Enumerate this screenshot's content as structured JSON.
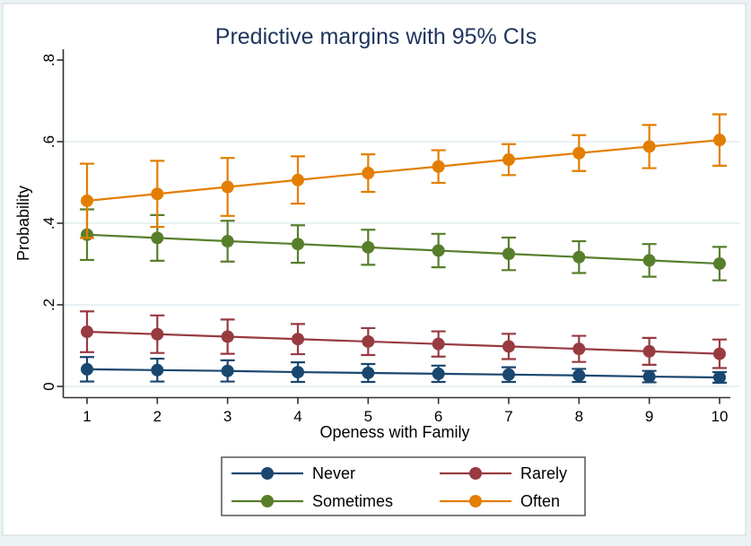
{
  "window": {
    "background": "#eaf2f3",
    "canvas_background": "#ffffff",
    "canvas_border": "#cfd9dd"
  },
  "chart_data": {
    "type": "line",
    "title": "Predictive margins with 95% CIs",
    "title_color": "#1e355e",
    "xlabel": "Openess with Family",
    "ylabel": "Probability",
    "error_bars": "95% CI",
    "x": [
      1,
      2,
      3,
      4,
      5,
      6,
      7,
      8,
      9,
      10
    ],
    "x_tick_labels": [
      "1",
      "2",
      "3",
      "4",
      "5",
      "6",
      "7",
      "8",
      "9",
      "10"
    ],
    "ylim": [
      0,
      0.8
    ],
    "y_ticks": [
      {
        "value": 0.0,
        "label": "0"
      },
      {
        "value": 0.2,
        "label": ".2"
      },
      {
        "value": 0.4,
        "label": ".4"
      },
      {
        "value": 0.6,
        "label": ".6"
      },
      {
        "value": 0.8,
        "label": ".8"
      }
    ],
    "grid_values": [
      0.0,
      0.2,
      0.4,
      0.6
    ],
    "grid_color": "#e1ebf1",
    "axis_color": "#303030",
    "tick_label_color": "#000000",
    "legend_position": "bottom",
    "legend": {
      "columns": 2,
      "border_color": "#4a4a4a",
      "background": "#ffffff"
    },
    "series": [
      {
        "name": "Never",
        "color": "#1a476f",
        "values": [
          0.042,
          0.04,
          0.038,
          0.035,
          0.033,
          0.031,
          0.029,
          0.027,
          0.024,
          0.022
        ],
        "ci_low": [
          0.012,
          0.012,
          0.012,
          0.011,
          0.011,
          0.011,
          0.011,
          0.011,
          0.01,
          0.009
        ],
        "ci_high": [
          0.072,
          0.068,
          0.064,
          0.059,
          0.055,
          0.051,
          0.047,
          0.043,
          0.038,
          0.035
        ]
      },
      {
        "name": "Rarely",
        "color": "#973b41",
        "values": [
          0.134,
          0.128,
          0.122,
          0.116,
          0.11,
          0.104,
          0.098,
          0.092,
          0.086,
          0.08
        ],
        "ci_low": [
          0.084,
          0.082,
          0.08,
          0.079,
          0.077,
          0.073,
          0.067,
          0.06,
          0.053,
          0.045
        ],
        "ci_high": [
          0.184,
          0.174,
          0.164,
          0.153,
          0.143,
          0.135,
          0.129,
          0.124,
          0.119,
          0.115
        ]
      },
      {
        "name": "Sometimes",
        "color": "#587e2c",
        "values": [
          0.372,
          0.364,
          0.356,
          0.349,
          0.341,
          0.333,
          0.325,
          0.317,
          0.309,
          0.301
        ],
        "ci_low": [
          0.31,
          0.308,
          0.306,
          0.303,
          0.298,
          0.292,
          0.285,
          0.278,
          0.269,
          0.26
        ],
        "ci_high": [
          0.434,
          0.42,
          0.406,
          0.395,
          0.384,
          0.374,
          0.365,
          0.356,
          0.349,
          0.342
        ]
      },
      {
        "name": "Often",
        "color": "#e37e00",
        "values": [
          0.455,
          0.472,
          0.489,
          0.506,
          0.523,
          0.539,
          0.556,
          0.572,
          0.588,
          0.604
        ],
        "ci_low": [
          0.364,
          0.391,
          0.418,
          0.448,
          0.477,
          0.499,
          0.518,
          0.528,
          0.535,
          0.541
        ],
        "ci_high": [
          0.546,
          0.553,
          0.56,
          0.564,
          0.569,
          0.579,
          0.594,
          0.616,
          0.641,
          0.667
        ]
      }
    ]
  }
}
